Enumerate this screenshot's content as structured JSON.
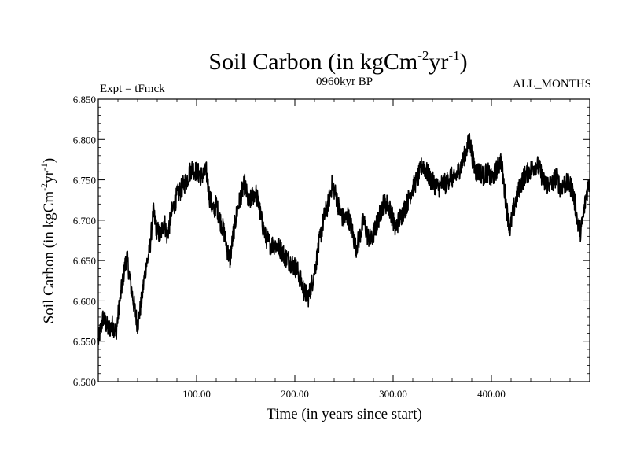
{
  "chart_data": {
    "type": "line",
    "title": {
      "base": "Soil Carbon (in kgCm",
      "sup1": "-2",
      "mid": "yr",
      "sup2": "-1",
      "end": ")"
    },
    "subtitle_left": "Expt = tFmck",
    "subtitle_center": "0960kyr BP",
    "subtitle_right": "ALL_MONTHS",
    "xlabel": "Time (in years since start)",
    "ylabel": {
      "base": "Soil Carbon (in kgCm",
      "sup1": "-2",
      "mid": "yr",
      "sup2": "-1",
      "end": ")"
    },
    "xlim": [
      0,
      500
    ],
    "ylim": [
      6.5,
      6.85
    ],
    "xticks": [
      100,
      200,
      300,
      400
    ],
    "xtick_labels": [
      "100.00",
      "200.00",
      "300.00",
      "400.00"
    ],
    "yticks": [
      6.5,
      6.55,
      6.6,
      6.65,
      6.7,
      6.75,
      6.8,
      6.85
    ],
    "ytick_labels": [
      "6.500",
      "6.550",
      "6.600",
      "6.650",
      "6.700",
      "6.750",
      "6.800",
      "6.850"
    ],
    "line_color": "#000000",
    "series": [
      {
        "name": "Soil Carbon",
        "points": [
          [
            0,
            6.55
          ],
          [
            5,
            6.58
          ],
          [
            10,
            6.565
          ],
          [
            15,
            6.57
          ],
          [
            18,
            6.56
          ],
          [
            22,
            6.6
          ],
          [
            26,
            6.635
          ],
          [
            29,
            6.655
          ],
          [
            33,
            6.62
          ],
          [
            37,
            6.59
          ],
          [
            40,
            6.57
          ],
          [
            44,
            6.6
          ],
          [
            48,
            6.64
          ],
          [
            52,
            6.66
          ],
          [
            56,
            6.71
          ],
          [
            59,
            6.69
          ],
          [
            63,
            6.68
          ],
          [
            67,
            6.7
          ],
          [
            70,
            6.68
          ],
          [
            75,
            6.71
          ],
          [
            80,
            6.73
          ],
          [
            85,
            6.74
          ],
          [
            90,
            6.75
          ],
          [
            95,
            6.765
          ],
          [
            100,
            6.76
          ],
          [
            105,
            6.755
          ],
          [
            110,
            6.76
          ],
          [
            113,
            6.73
          ],
          [
            117,
            6.71
          ],
          [
            120,
            6.72
          ],
          [
            124,
            6.7
          ],
          [
            128,
            6.685
          ],
          [
            131,
            6.665
          ],
          [
            134,
            6.65
          ],
          [
            137,
            6.68
          ],
          [
            141,
            6.71
          ],
          [
            145,
            6.73
          ],
          [
            149,
            6.745
          ],
          [
            153,
            6.72
          ],
          [
            157,
            6.73
          ],
          [
            160,
            6.735
          ],
          [
            163,
            6.72
          ],
          [
            166,
            6.7
          ],
          [
            170,
            6.68
          ],
          [
            175,
            6.67
          ],
          [
            180,
            6.67
          ],
          [
            185,
            6.665
          ],
          [
            190,
            6.655
          ],
          [
            194,
            6.65
          ],
          [
            198,
            6.645
          ],
          [
            202,
            6.64
          ],
          [
            206,
            6.625
          ],
          [
            210,
            6.61
          ],
          [
            214,
            6.605
          ],
          [
            218,
            6.625
          ],
          [
            222,
            6.65
          ],
          [
            226,
            6.68
          ],
          [
            230,
            6.705
          ],
          [
            234,
            6.72
          ],
          [
            238,
            6.745
          ],
          [
            242,
            6.73
          ],
          [
            246,
            6.71
          ],
          [
            250,
            6.7
          ],
          [
            254,
            6.705
          ],
          [
            258,
            6.69
          ],
          [
            262,
            6.665
          ],
          [
            266,
            6.68
          ],
          [
            270,
            6.7
          ],
          [
            274,
            6.68
          ],
          [
            278,
            6.675
          ],
          [
            282,
            6.69
          ],
          [
            286,
            6.705
          ],
          [
            290,
            6.72
          ],
          [
            294,
            6.72
          ],
          [
            298,
            6.71
          ],
          [
            302,
            6.69
          ],
          [
            306,
            6.7
          ],
          [
            310,
            6.71
          ],
          [
            314,
            6.72
          ],
          [
            318,
            6.735
          ],
          [
            322,
            6.745
          ],
          [
            326,
            6.755
          ],
          [
            330,
            6.77
          ],
          [
            334,
            6.76
          ],
          [
            338,
            6.75
          ],
          [
            342,
            6.745
          ],
          [
            346,
            6.74
          ],
          [
            350,
            6.745
          ],
          [
            354,
            6.745
          ],
          [
            358,
            6.755
          ],
          [
            362,
            6.75
          ],
          [
            366,
            6.76
          ],
          [
            370,
            6.77
          ],
          [
            374,
            6.785
          ],
          [
            378,
            6.8
          ],
          [
            381,
            6.775
          ],
          [
            384,
            6.76
          ],
          [
            388,
            6.76
          ],
          [
            392,
            6.755
          ],
          [
            396,
            6.76
          ],
          [
            400,
            6.75
          ],
          [
            404,
            6.76
          ],
          [
            408,
            6.77
          ],
          [
            410,
            6.775
          ],
          [
            413,
            6.74
          ],
          [
            416,
            6.71
          ],
          [
            419,
            6.69
          ],
          [
            422,
            6.71
          ],
          [
            426,
            6.73
          ],
          [
            430,
            6.745
          ],
          [
            434,
            6.755
          ],
          [
            438,
            6.76
          ],
          [
            442,
            6.765
          ],
          [
            446,
            6.77
          ],
          [
            450,
            6.76
          ],
          [
            454,
            6.745
          ],
          [
            458,
            6.745
          ],
          [
            462,
            6.745
          ],
          [
            466,
            6.755
          ],
          [
            470,
            6.74
          ],
          [
            474,
            6.745
          ],
          [
            478,
            6.745
          ],
          [
            482,
            6.74
          ],
          [
            485,
            6.72
          ],
          [
            488,
            6.695
          ],
          [
            491,
            6.685
          ],
          [
            494,
            6.71
          ],
          [
            497,
            6.735
          ],
          [
            500,
            6.75
          ]
        ]
      }
    ]
  }
}
